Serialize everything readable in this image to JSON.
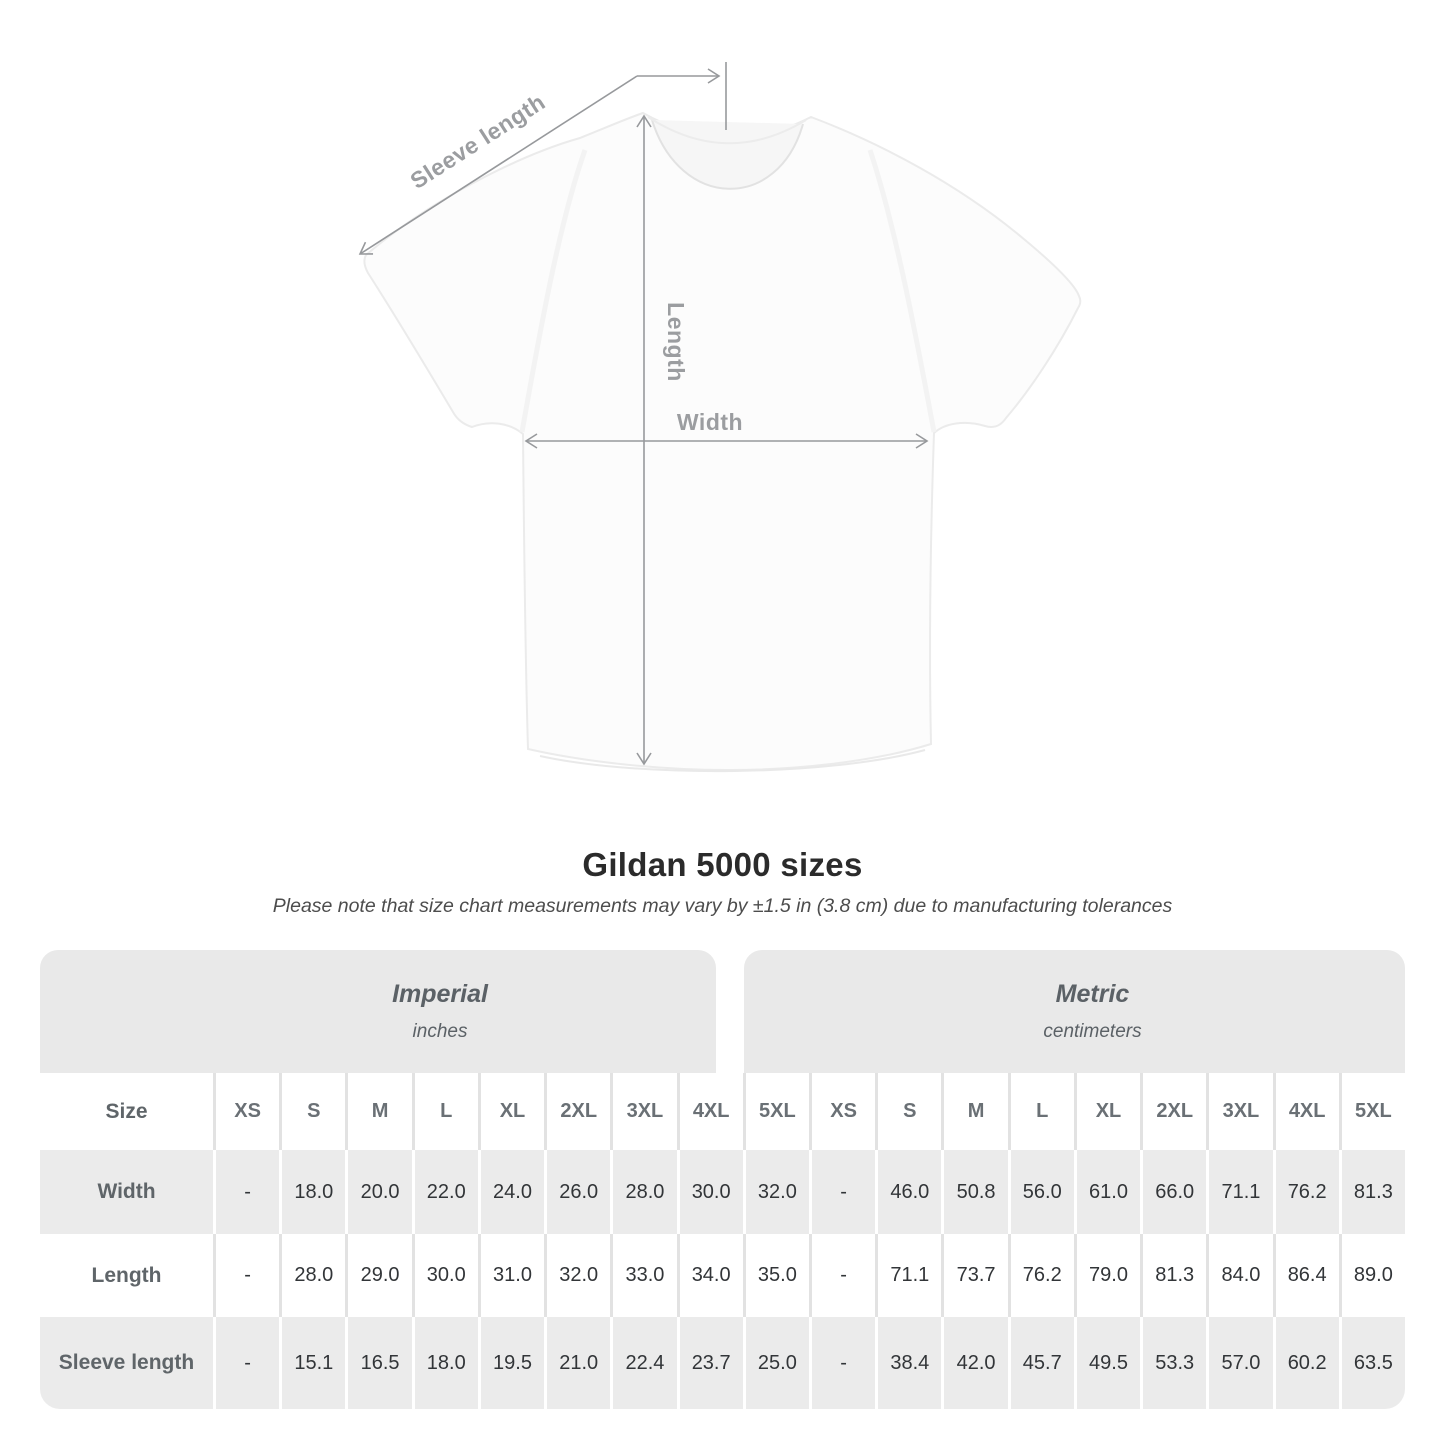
{
  "diagram": {
    "labels": {
      "sleeve_length": "Sleeve length",
      "length": "Length",
      "width": "Width"
    }
  },
  "title": "Gildan 5000 sizes",
  "note": "Please note that size chart measurements may vary by ±1.5 in (3.8 cm) due to manufacturing tolerances",
  "table": {
    "unit_headers": [
      {
        "title": "Imperial",
        "subtitle": "inches"
      },
      {
        "title": "Metric",
        "subtitle": "centimeters"
      }
    ],
    "size_label": "Size",
    "sizes": [
      "XS",
      "S",
      "M",
      "L",
      "XL",
      "2XL",
      "3XL",
      "4XL",
      "5XL"
    ],
    "rows": [
      {
        "label": "Width",
        "imperial": [
          "-",
          "18.0",
          "20.0",
          "22.0",
          "24.0",
          "26.0",
          "28.0",
          "30.0",
          "32.0"
        ],
        "metric": [
          "-",
          "46.0",
          "50.8",
          "56.0",
          "61.0",
          "66.0",
          "71.1",
          "76.2",
          "81.3"
        ]
      },
      {
        "label": "Length",
        "imperial": [
          "-",
          "28.0",
          "29.0",
          "30.0",
          "31.0",
          "32.0",
          "33.0",
          "34.0",
          "35.0"
        ],
        "metric": [
          "-",
          "71.1",
          "73.7",
          "76.2",
          "79.0",
          "81.3",
          "84.0",
          "86.4",
          "89.0"
        ]
      },
      {
        "label": "Sleeve length",
        "imperial": [
          "-",
          "15.1",
          "16.5",
          "18.0",
          "19.5",
          "21.0",
          "22.4",
          "23.7",
          "25.0"
        ],
        "metric": [
          "-",
          "38.4",
          "42.0",
          "45.7",
          "49.5",
          "53.3",
          "57.0",
          "60.2",
          "63.5"
        ]
      }
    ]
  },
  "colors": {
    "band_gray": "#e9e9e9",
    "row_gray": "#ebebeb",
    "annotation_gray": "#9b9da0",
    "text_dark": "#323538"
  }
}
